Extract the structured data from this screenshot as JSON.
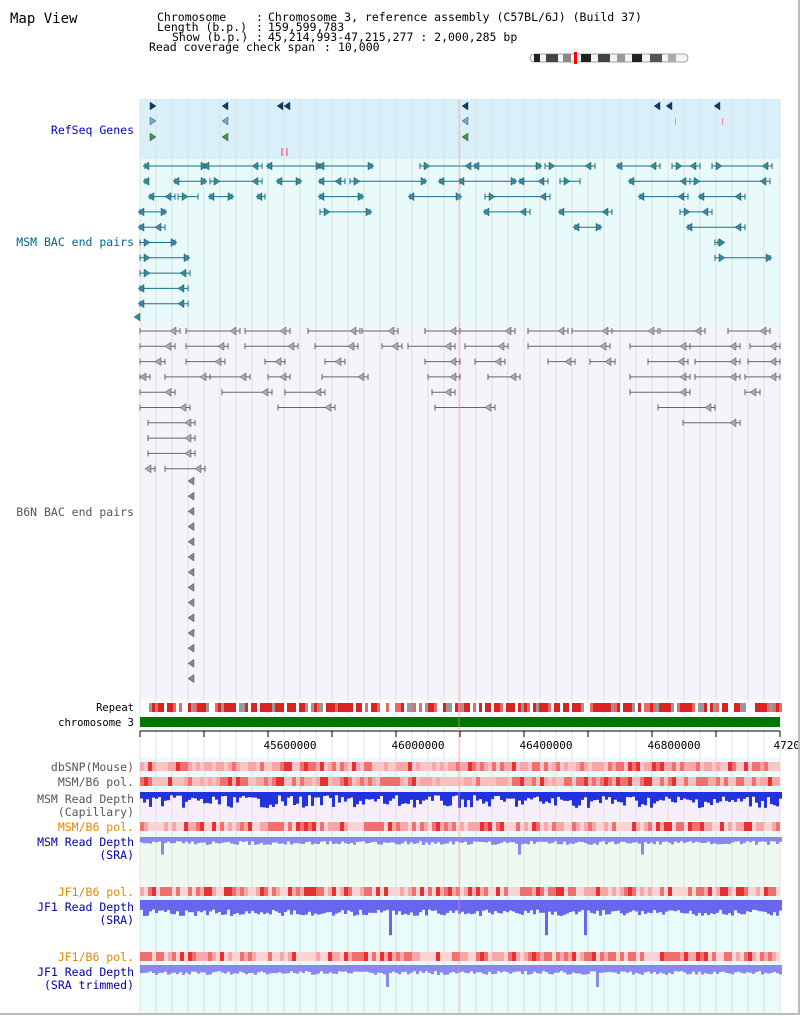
{
  "title": "Map View",
  "info": {
    "chromosome_label": "Chromosome",
    "chromosome_value": "Chromosome 3, reference assembly (C57BL/6J) (Build 37)",
    "length_label": "Length (b.p.)",
    "length_value": "159,599,783",
    "show_label": "Show (b.p.)",
    "show_value": "45,214,993-47,215,277 : 2,000,285 bp",
    "span_label": "Read coverage check span",
    "span_value": "10,000",
    "separator": ":"
  },
  "tracks": {
    "refseq": "RefSeq Genes",
    "msm_bac": "MSM BAC end pairs",
    "b6n_bac": "B6N BAC end pairs",
    "repeat": "Repeat",
    "chromosome": "chromosome 3",
    "dbsnp": "dbSNP(Mouse)",
    "msm_pol1": "MSM/B6 pol.",
    "msm_depth_cap_1": "MSM Read Depth",
    "msm_depth_cap_2": "(Capillary)",
    "msm_pol2": "MSM/B6 pol.",
    "msm_depth_sra_1": "MSM Read Depth",
    "msm_depth_sra_2": "(SRA)",
    "jf1_pol1": "JF1/B6 pol.",
    "jf1_depth_sra_1": "JF1 Read Depth",
    "jf1_depth_sra_2": "(SRA)",
    "jf1_pol2": "JF1/B6 pol.",
    "jf1_depth_trim_1": "JF1 Read Depth",
    "jf1_depth_trim_2": "(SRA trimmed)"
  },
  "ruler": {
    "ticks": [
      "45600000",
      "46000000",
      "46400000",
      "46800000",
      "4720"
    ]
  },
  "colors": {
    "refseq_label": "#0000cc",
    "msm_label": "#006688",
    "b6n_label": "#555555",
    "orange_label": "#e08800",
    "blue_label": "#0000aa",
    "chromosome_bar": "#007700"
  }
}
